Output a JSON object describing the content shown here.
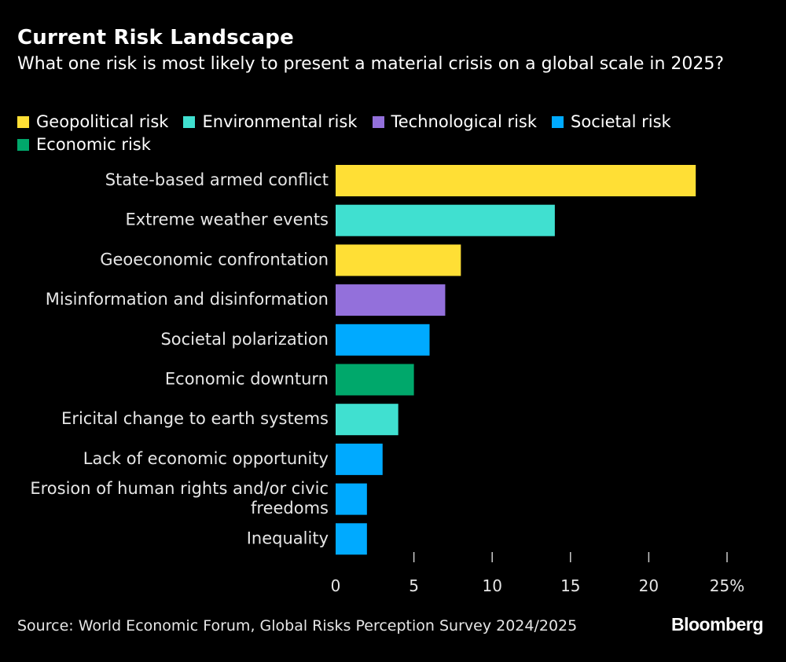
{
  "chart_data": {
    "type": "bar",
    "orientation": "horizontal",
    "title": "Current Risk Landscape",
    "subtitle": "What one risk is most likely to present a material crisis on a global scale in 2025?",
    "legend": [
      {
        "name": "Geopolitical risk",
        "color": "#FFDF35"
      },
      {
        "name": "Environmental risk",
        "color": "#40E0D0"
      },
      {
        "name": "Technological risk",
        "color": "#9370DB"
      },
      {
        "name": "Societal risk",
        "color": "#00AAFF"
      },
      {
        "name": "Economic risk",
        "color": "#00A86B"
      }
    ],
    "categories": [
      "State-based armed conflict",
      "Extreme weather events",
      "Geoeconomic confrontation",
      "Misinformation and disinformation",
      "Societal polarization",
      "Economic downturn",
      "Ericital change to earth systems",
      "Lack of economic opportunity",
      "Erosion of human rights and/or civic freedoms",
      "Inequality"
    ],
    "category_lines": [
      [
        "State-based armed conflict"
      ],
      [
        "Extreme weather events"
      ],
      [
        "Geoeconomic confrontation"
      ],
      [
        "Misinformation and disinformation"
      ],
      [
        "Societal polarization"
      ],
      [
        "Economic downturn"
      ],
      [
        "Ericital change to earth systems"
      ],
      [
        "Lack of economic opportunity"
      ],
      [
        "Erosion of human rights and/or civic",
        "freedoms"
      ],
      [
        "Inequality"
      ]
    ],
    "values": [
      23,
      14,
      8,
      7,
      6,
      5,
      4,
      3,
      2,
      2
    ],
    "risk_type": [
      "Geopolitical risk",
      "Environmental risk",
      "Geopolitical risk",
      "Technological risk",
      "Societal risk",
      "Economic risk",
      "Environmental risk",
      "Societal risk",
      "Societal risk",
      "Societal risk"
    ],
    "xlim": [
      0,
      25
    ],
    "xticks": [
      0,
      5,
      10,
      15,
      20,
      25
    ],
    "xtick_labels": [
      "0",
      "5",
      "10",
      "15",
      "20",
      "25%"
    ],
    "xlabel": "",
    "ylabel": "",
    "grid": false
  },
  "footer": {
    "source": "Source: World Economic Forum, Global Risks Perception Survey 2024/2025",
    "brand": "Bloomberg"
  }
}
